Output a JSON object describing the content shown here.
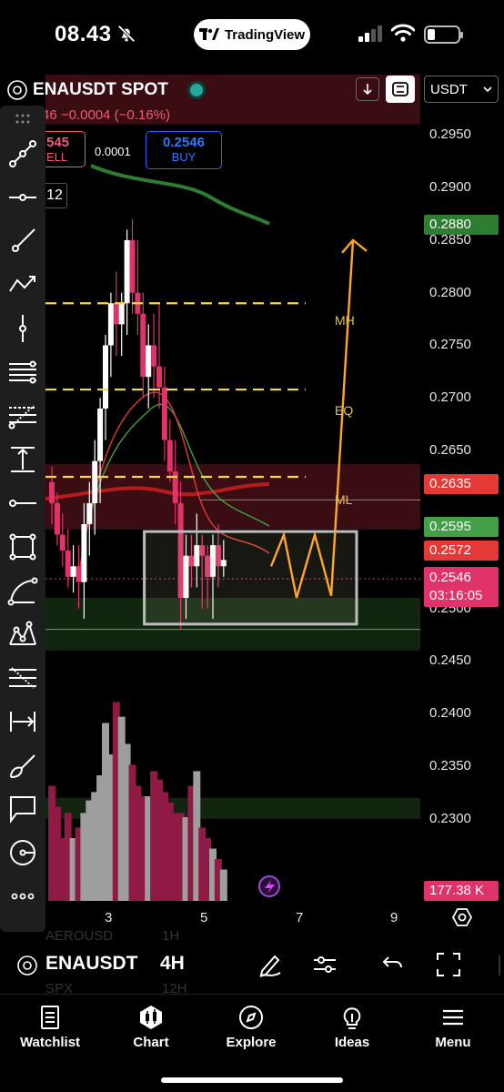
{
  "status_bar": {
    "time": "08.43",
    "pill_app": "TradingView"
  },
  "header": {
    "symbol": "ENAUSDT SPOT",
    "change": "46 −0.0004 (−0.16%)",
    "sell_price": "545",
    "sell_label": "ELL",
    "spread": "0.0001",
    "buy_price": "0.2546",
    "buy_label": "BUY",
    "currency": "USDT",
    "interval_badge": "12"
  },
  "price_scale": {
    "ticks": [
      "0.2950",
      "0.2900",
      "0.2850",
      "0.2800",
      "0.2750",
      "0.2700",
      "0.2650",
      "0.2500",
      "0.2450",
      "0.2400",
      "0.2350",
      "0.2300"
    ],
    "tags": {
      "p2880": "0.2880",
      "p2635": "0.2635",
      "p2595": "0.2595",
      "p2572": "0.2572",
      "p2546": "0.2546",
      "countdown": "03:16:05",
      "volume": "177.38 K"
    },
    "colors": {
      "up": "#ffffff",
      "down": "#e0336a",
      "accent_green": "#43a047",
      "accent_red": "#e53935"
    }
  },
  "x_axis": {
    "ticks": [
      "3",
      "5",
      "7",
      "9"
    ]
  },
  "zone_labels": {
    "mh": "MH",
    "eq": "EQ",
    "ml": "ML"
  },
  "ghost_watchlist": {
    "a": "AEROUSD",
    "b": "1H",
    "c": "SPX",
    "d": "12H"
  },
  "symbol_bar": {
    "symbol": "ENAUSDT",
    "interval": "4H"
  },
  "tabs": [
    {
      "label": "Watchlist",
      "icon": "watchlist-icon"
    },
    {
      "label": "Chart",
      "icon": "chart-icon"
    },
    {
      "label": "Explore",
      "icon": "compass-icon"
    },
    {
      "label": "Ideas",
      "icon": "bulb-icon"
    },
    {
      "label": "Menu",
      "icon": "menu-icon"
    }
  ],
  "chart_data": {
    "type": "candlestick",
    "candles": [
      [
        0.262,
        0.2635,
        0.258,
        0.26
      ],
      [
        0.26,
        0.261,
        0.256,
        0.257
      ],
      [
        0.257,
        0.259,
        0.254,
        0.2555
      ],
      [
        0.2555,
        0.2575,
        0.252,
        0.253
      ],
      [
        0.253,
        0.256,
        0.2515,
        0.254
      ],
      [
        0.254,
        0.256,
        0.25,
        0.2525
      ],
      [
        0.2525,
        0.26,
        0.249,
        0.258
      ],
      [
        0.258,
        0.262,
        0.255,
        0.26
      ],
      [
        0.26,
        0.266,
        0.257,
        0.264
      ],
      [
        0.264,
        0.27,
        0.26,
        0.269
      ],
      [
        0.269,
        0.276,
        0.266,
        0.275
      ],
      [
        0.275,
        0.28,
        0.272,
        0.279
      ],
      [
        0.279,
        0.282,
        0.274,
        0.277
      ],
      [
        0.277,
        0.28,
        0.274,
        0.279
      ],
      [
        0.279,
        0.286,
        0.276,
        0.285
      ],
      [
        0.285,
        0.287,
        0.278,
        0.28
      ],
      [
        0.28,
        0.285,
        0.276,
        0.278
      ],
      [
        0.278,
        0.28,
        0.27,
        0.272
      ],
      [
        0.272,
        0.277,
        0.269,
        0.275
      ],
      [
        0.275,
        0.278,
        0.27,
        0.273
      ],
      [
        0.273,
        0.279,
        0.269,
        0.271
      ],
      [
        0.271,
        0.273,
        0.264,
        0.266
      ],
      [
        0.266,
        0.268,
        0.262,
        0.263
      ],
      [
        0.263,
        0.266,
        0.258,
        0.26
      ],
      [
        0.26,
        0.262,
        0.248,
        0.251
      ],
      [
        0.251,
        0.257,
        0.249,
        0.255
      ],
      [
        0.255,
        0.257,
        0.252,
        0.254
      ],
      [
        0.254,
        0.259,
        0.252,
        0.256
      ],
      [
        0.256,
        0.257,
        0.25,
        0.255
      ],
      [
        0.255,
        0.256,
        0.25,
        0.253
      ],
      [
        0.253,
        0.257,
        0.249,
        0.256
      ],
      [
        0.256,
        0.258,
        0.252,
        0.254
      ],
      [
        0.254,
        0.2565,
        0.253,
        0.2546
      ]
    ],
    "volume": [
      0.55,
      0.45,
      0.3,
      0.42,
      0.3,
      0.35,
      0.42,
      0.48,
      0.52,
      0.6,
      0.85,
      0.7,
      0.95,
      0.88,
      0.75,
      0.65,
      0.55,
      0.5,
      0.5,
      0.62,
      0.58,
      0.52,
      0.47,
      0.42,
      0.42,
      0.4,
      0.55,
      0.62,
      0.35,
      0.3,
      0.25,
      0.2,
      0.15
    ],
    "ylim": [
      0.226,
      0.299
    ],
    "x_ticks": [
      "3",
      "5",
      "7",
      "9"
    ],
    "levels": {
      "MH": 0.279,
      "EQ": 0.2708,
      "ML": 0.2625
    },
    "box": {
      "from_bar": 24,
      "to_bar": 43,
      "low": 0.2485,
      "high": 0.2573
    },
    "projection_peak": 0.285
  }
}
